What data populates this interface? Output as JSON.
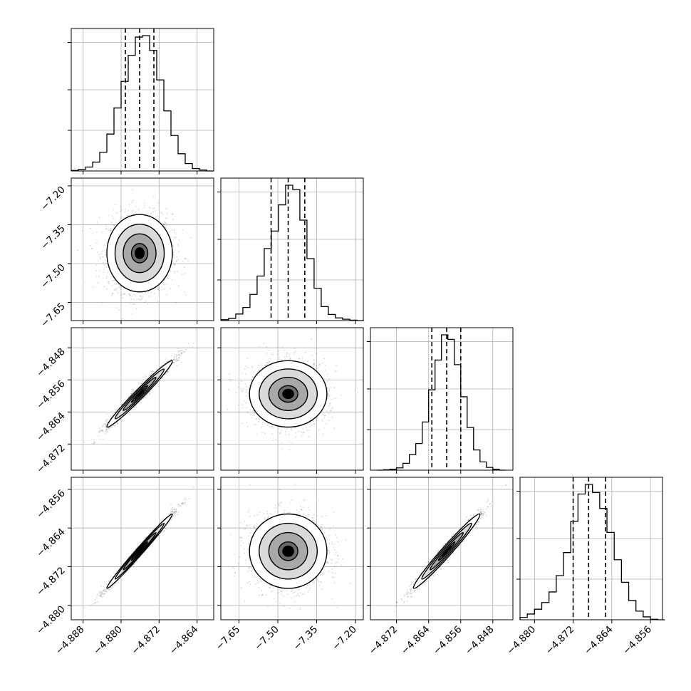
{
  "chart_data": {
    "type": "corner",
    "parameters": [
      {
        "range": [
          -4.8905,
          -4.8605
        ],
        "ticks": [
          -4.888,
          -4.88,
          -4.872,
          -4.864
        ],
        "tick_labels": [
          "−4.888",
          "−4.880",
          "−4.872",
          "−4.864"
        ],
        "quantiles": [
          -4.8791,
          -4.8761,
          -4.8731
        ],
        "hist": {
          "bins": [
            -4.8905,
            -4.889,
            -4.8875,
            -4.886,
            -4.8845,
            -4.883,
            -4.8815,
            -4.88,
            -4.8785,
            -4.877,
            -4.8755,
            -4.874,
            -4.8725,
            -4.871,
            -4.8695,
            -4.868,
            -4.8665,
            -4.865,
            -4.8635,
            -4.862,
            -4.8605
          ],
          "counts": [
            1,
            3,
            8,
            18,
            38,
            75,
            128,
            182,
            235,
            272,
            275,
            245,
            185,
            122,
            72,
            35,
            15,
            5,
            2,
            0
          ]
        }
      },
      {
        "range": [
          -7.72,
          -7.17
        ],
        "ticks": [
          -7.65,
          -7.5,
          -7.35,
          -7.2
        ],
        "tick_labels": [
          "−7.65",
          "−7.50",
          "−7.35",
          "−7.20"
        ],
        "quantiles": [
          -7.526,
          -7.46,
          -7.396
        ],
        "hist": {
          "bins": [
            -7.7175,
            -7.69,
            -7.6625,
            -7.635,
            -7.6075,
            -7.58,
            -7.5525,
            -7.525,
            -7.4975,
            -7.47,
            -7.4425,
            -7.415,
            -7.3875,
            -7.36,
            -7.3325,
            -7.305,
            -7.2775,
            -7.25,
            -7.2225,
            -7.195,
            -7.1675
          ],
          "counts": [
            2,
            5,
            15,
            30,
            60,
            102,
            165,
            205,
            265,
            310,
            300,
            230,
            142,
            74,
            32,
            14,
            6,
            3,
            1,
            0
          ]
        }
      },
      {
        "range": [
          -4.8785,
          -4.843
        ],
        "ticks": [
          -4.872,
          -4.864,
          -4.856,
          -4.848
        ],
        "tick_labels": [
          "−4.872",
          "−4.864",
          "−4.856",
          "−4.848"
        ],
        "quantiles": [
          -4.8632,
          -4.8595,
          -4.856
        ],
        "hist": {
          "bins": [
            -4.8768,
            -4.8752,
            -4.8736,
            -4.872,
            -4.8704,
            -4.8688,
            -4.8672,
            -4.8656,
            -4.864,
            -4.8624,
            -4.8608,
            -4.8592,
            -4.8576,
            -4.856,
            -4.8544,
            -4.8528,
            -4.8512,
            -4.8496,
            -4.848,
            -4.8464,
            -4.8448
          ],
          "counts": [
            0,
            1,
            2,
            5,
            15,
            34,
            58,
            105,
            175,
            240,
            295,
            285,
            230,
            160,
            93,
            44,
            18,
            6,
            2,
            0
          ]
        }
      },
      {
        "range": [
          -4.883,
          -4.8535
        ],
        "ticks": [
          -4.88,
          -4.872,
          -4.864,
          -4.856
        ],
        "tick_labels": [
          "−4.880",
          "−4.872",
          "−4.864",
          "−4.856"
        ],
        "quantiles": [
          -4.872,
          -4.8688,
          -4.8653
        ],
        "hist": {
          "bins": [
            -4.883,
            -4.8815,
            -4.88,
            -4.8785,
            -4.877,
            -4.8755,
            -4.874,
            -4.8725,
            -4.871,
            -4.8695,
            -4.868,
            -4.8665,
            -4.865,
            -4.8635,
            -4.862,
            -4.8605,
            -4.859,
            -4.8575,
            -4.856,
            -4.8545,
            -4.853
          ],
          "counts": [
            5,
            12,
            22,
            36,
            58,
            92,
            140,
            205,
            262,
            282,
            265,
            232,
            182,
            125,
            78,
            40,
            18,
            6,
            1,
            0
          ]
        }
      }
    ],
    "correlations": {
      "1,0": 0.0,
      "2,0": 0.98,
      "2,1": 0.0,
      "3,0": 0.99,
      "3,1": 0.0,
      "3,2": 0.98
    },
    "contour_levels_sigma": [
      0.5,
      1.0,
      1.5,
      2.0
    ],
    "grid": true,
    "quantile_style": "dashed",
    "colors": {
      "hist": "#000000",
      "density": "#000000",
      "grid": "#b0b0b0",
      "contour_fill": "#ffffff"
    }
  }
}
